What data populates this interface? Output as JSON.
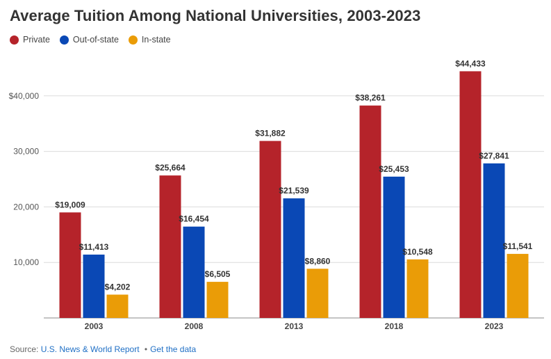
{
  "title": "Average Tuition Among National Universities, 2003-2023",
  "legend": [
    {
      "name": "Private",
      "color": "#b5232a"
    },
    {
      "name": "Out-of-state",
      "color": "#0a48b5"
    },
    {
      "name": "In-state",
      "color": "#ea9c07"
    }
  ],
  "footer": {
    "source_label": "Source:",
    "source_name": "U.S. News & World Report",
    "separator": "•",
    "get_data": "Get the data"
  },
  "chart_data": {
    "type": "bar",
    "categories": [
      "2003",
      "2008",
      "2013",
      "2018",
      "2023"
    ],
    "series": [
      {
        "name": "Private",
        "color": "#b5232a",
        "values": [
          19009,
          25664,
          31882,
          38261,
          44433
        ],
        "labels": [
          "$19,009",
          "$25,664",
          "$31,882",
          "$38,261",
          "$44,433"
        ]
      },
      {
        "name": "Out-of-state",
        "color": "#0a48b5",
        "values": [
          11413,
          16454,
          21539,
          25453,
          27841
        ],
        "labels": [
          "$11,413",
          "$16,454",
          "$21,539",
          "$25,453",
          "$27,841"
        ]
      },
      {
        "name": "In-state",
        "color": "#ea9c07",
        "values": [
          4202,
          6505,
          8860,
          10548,
          11541
        ],
        "labels": [
          "$4,202",
          "$6,505",
          "$8,860",
          "$10,548",
          "$11,541"
        ]
      }
    ],
    "yticks": [
      10000,
      20000,
      30000,
      40000
    ],
    "ytick_labels": [
      "10,000",
      "20,000",
      "30,000",
      "$40,000"
    ],
    "ylim": [
      0,
      50000
    ],
    "grid": true,
    "legend_position": "top-left"
  }
}
